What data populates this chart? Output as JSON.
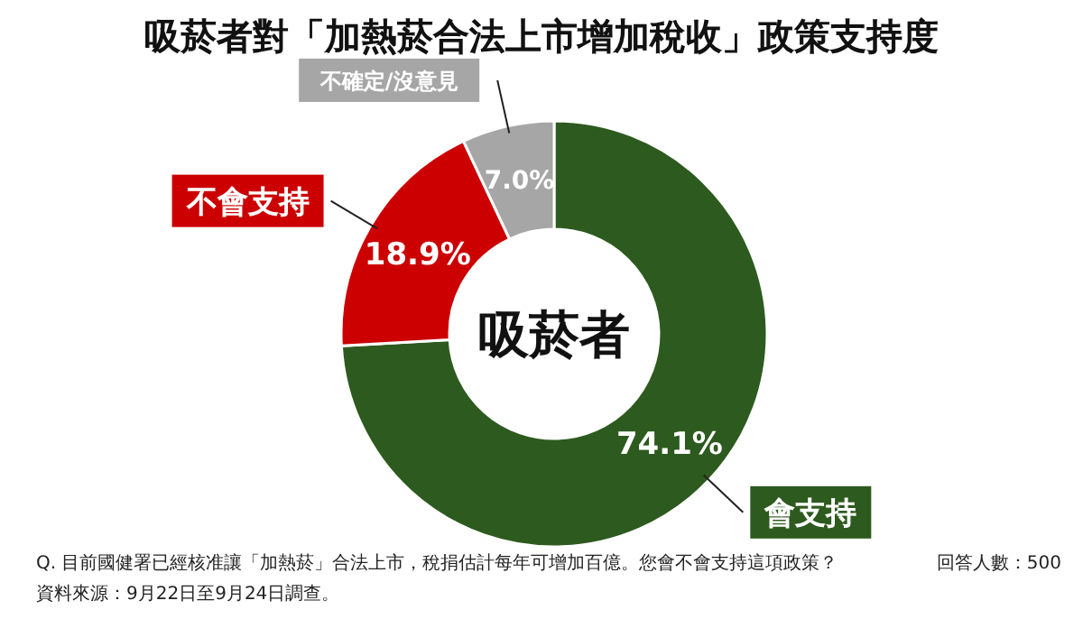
{
  "chart_data": {
    "type": "donut",
    "title": "吸菸者對「加熱菸合法上市增加稅收」政策支持度",
    "categories": [
      "會支持",
      "不會支持",
      "不確定/沒意見"
    ],
    "values": [
      74.1,
      18.9,
      7.0
    ],
    "value_labels": [
      "74.1%",
      "18.9%",
      "7.0%"
    ],
    "colors": [
      "#2d5a1e",
      "#cc0000",
      "#a6a6a6"
    ],
    "annotations": [
      "吸菸者",
      "Q. 目前國健署已經核准讓「加熱菸」合法上市，稅捐估計每年可增加百億。您會不會支持這項政策？",
      "回答人數：500",
      "資料來源：9月22日至9月24日調查。"
    ]
  }
}
